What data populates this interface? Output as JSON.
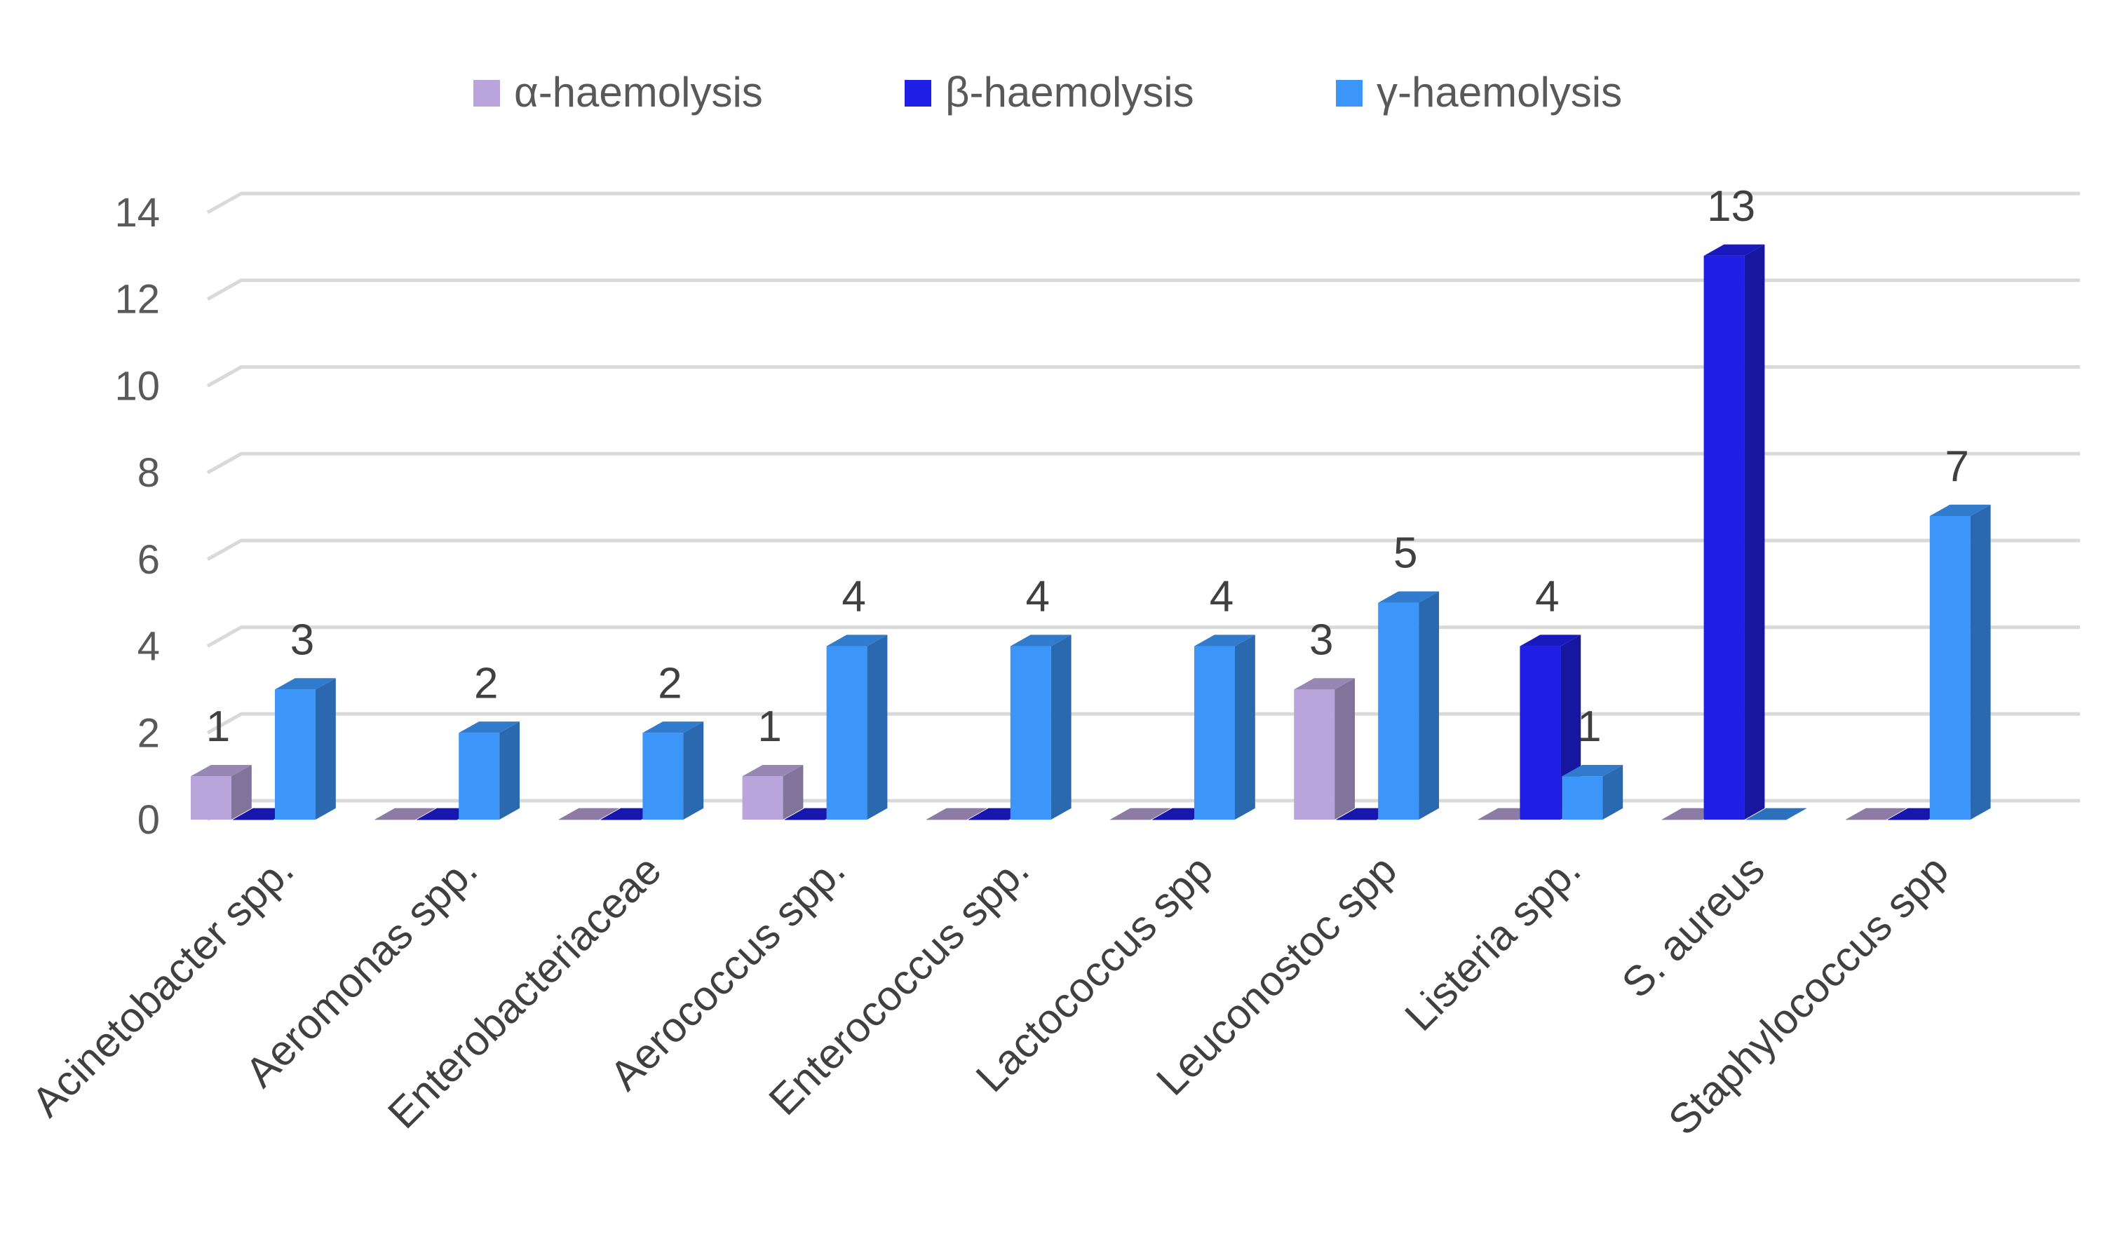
{
  "chart_data": {
    "type": "bar",
    "title": "",
    "xlabel": "",
    "ylabel": "",
    "ylim": [
      0,
      14
    ],
    "yticks": [
      0,
      2,
      4,
      6,
      8,
      10,
      12,
      14
    ],
    "grid": true,
    "legend_position": "top",
    "categories": [
      "Acinetobacter spp.",
      "Aeromonas spp.",
      "Enterobacteriaceae",
      "Aerococcus spp.",
      "Enterococcus spp.",
      "Lactococcus spp",
      "Leuconostoc spp",
      "Listeria spp.",
      "S. aureus",
      "Staphylococcus spp"
    ],
    "series": [
      {
        "name": "α-haemolysis",
        "color": "#b9a4dc",
        "values": [
          1,
          0,
          0,
          1,
          0,
          0,
          3,
          0,
          0,
          0
        ],
        "labels": [
          "1",
          "",
          "",
          "1",
          "",
          "",
          "3",
          "",
          "",
          ""
        ]
      },
      {
        "name": "β-haemolysis",
        "color": "#1f1fe6",
        "values": [
          0,
          0,
          0,
          0,
          0,
          0,
          0,
          4,
          13,
          0
        ],
        "labels": [
          "",
          "",
          "",
          "",
          "",
          "",
          "",
          "4",
          "13",
          ""
        ]
      },
      {
        "name": "γ-haemolysis",
        "color": "#3c96fa",
        "values": [
          3,
          2,
          2,
          4,
          4,
          4,
          5,
          1,
          0,
          7
        ],
        "labels": [
          "3",
          "2",
          "2",
          "4",
          "4",
          "4",
          "5",
          "1",
          "",
          "7"
        ]
      }
    ]
  }
}
